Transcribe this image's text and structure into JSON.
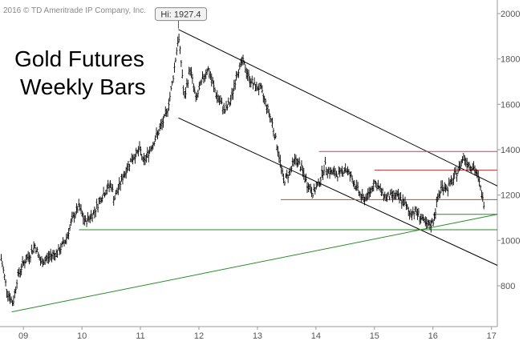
{
  "copyright": "2016 © TD Ameritrade IP Company, Inc.",
  "title_lines": [
    "Gold Futures",
    "Weekly Bars"
  ],
  "chart_data": {
    "type": "ohlc",
    "title": "Gold Futures Weekly Bars",
    "x_ticks": [
      "09",
      "10",
      "11",
      "12",
      "13",
      "14",
      "15",
      "16",
      "17"
    ],
    "x_tick_years": [
      2009,
      2010,
      2011,
      2012,
      2013,
      2014,
      2015,
      2016,
      2017
    ],
    "y_ticks": [
      800,
      1000,
      1200,
      1400,
      1600,
      1800,
      2000
    ],
    "xlim": [
      2008.6,
      2017.1
    ],
    "ylim": [
      620,
      2060
    ],
    "grid": false,
    "annotation": {
      "text": "Hi: 1927.4",
      "x": 2011.65,
      "y": 1927.4
    },
    "price_path": [
      [
        2008.62,
        920
      ],
      [
        2008.72,
        780
      ],
      [
        2008.82,
        720
      ],
      [
        2008.9,
        840
      ],
      [
        2009.0,
        900
      ],
      [
        2009.12,
        940
      ],
      [
        2009.2,
        980
      ],
      [
        2009.3,
        900
      ],
      [
        2009.45,
        930
      ],
      [
        2009.6,
        950
      ],
      [
        2009.72,
        1000
      ],
      [
        2009.85,
        1100
      ],
      [
        2009.95,
        1150
      ],
      [
        2010.05,
        1080
      ],
      [
        2010.2,
        1120
      ],
      [
        2010.35,
        1200
      ],
      [
        2010.5,
        1250
      ],
      [
        2010.55,
        1180
      ],
      [
        2010.7,
        1280
      ],
      [
        2010.85,
        1360
      ],
      [
        2011.0,
        1400
      ],
      [
        2011.05,
        1340
      ],
      [
        2011.2,
        1420
      ],
      [
        2011.35,
        1500
      ],
      [
        2011.45,
        1560
      ],
      [
        2011.55,
        1700
      ],
      [
        2011.65,
        1900
      ],
      [
        2011.7,
        1780
      ],
      [
        2011.75,
        1620
      ],
      [
        2011.85,
        1760
      ],
      [
        2011.95,
        1620
      ],
      [
        2012.05,
        1700
      ],
      [
        2012.15,
        1760
      ],
      [
        2012.3,
        1640
      ],
      [
        2012.45,
        1570
      ],
      [
        2012.55,
        1620
      ],
      [
        2012.65,
        1740
      ],
      [
        2012.75,
        1790
      ],
      [
        2012.85,
        1720
      ],
      [
        2012.95,
        1680
      ],
      [
        2013.05,
        1670
      ],
      [
        2013.15,
        1600
      ],
      [
        2013.25,
        1520
      ],
      [
        2013.35,
        1400
      ],
      [
        2013.45,
        1260
      ],
      [
        2013.55,
        1300
      ],
      [
        2013.65,
        1360
      ],
      [
        2013.75,
        1320
      ],
      [
        2013.85,
        1250
      ],
      [
        2013.95,
        1210
      ],
      [
        2014.05,
        1250
      ],
      [
        2014.15,
        1330
      ],
      [
        2014.25,
        1300
      ],
      [
        2014.4,
        1290
      ],
      [
        2014.5,
        1320
      ],
      [
        2014.6,
        1280
      ],
      [
        2014.7,
        1230
      ],
      [
        2014.8,
        1180
      ],
      [
        2014.9,
        1200
      ],
      [
        2015.0,
        1260
      ],
      [
        2015.1,
        1220
      ],
      [
        2015.2,
        1190
      ],
      [
        2015.35,
        1200
      ],
      [
        2015.5,
        1170
      ],
      [
        2015.6,
        1120
      ],
      [
        2015.7,
        1130
      ],
      [
        2015.8,
        1100
      ],
      [
        2015.9,
        1060
      ],
      [
        2016.0,
        1080
      ],
      [
        2016.08,
        1180
      ],
      [
        2016.15,
        1240
      ],
      [
        2016.25,
        1230
      ],
      [
        2016.35,
        1270
      ],
      [
        2016.45,
        1320
      ],
      [
        2016.52,
        1370
      ],
      [
        2016.6,
        1340
      ],
      [
        2016.7,
        1320
      ],
      [
        2016.78,
        1270
      ],
      [
        2016.85,
        1180
      ],
      [
        2016.88,
        1160
      ]
    ],
    "lines": [
      {
        "name": "channel-upper",
        "color": "#000000",
        "x": [
          2011.65,
          2017.1
        ],
        "y": [
          1930,
          1240
        ]
      },
      {
        "name": "channel-lower",
        "color": "#000000",
        "x": [
          2011.65,
          2017.1
        ],
        "y": [
          1540,
          890
        ]
      },
      {
        "name": "long-support-trendline",
        "color": "#2a8a2a",
        "x": [
          2008.8,
          2017.1
        ],
        "y": [
          685,
          1115
        ]
      },
      {
        "name": "support-horizontal-1050",
        "color": "#2a8a2a",
        "x": [
          2009.95,
          2017.1
        ],
        "y": [
          1047,
          1047
        ]
      },
      {
        "name": "support-horizontal-1115",
        "color": "#2a8a2a",
        "x": [
          2016.0,
          2017.1
        ],
        "y": [
          1115,
          1115
        ]
      },
      {
        "name": "resistance-1390",
        "color": "#d04040",
        "x": [
          2014.05,
          2017.1
        ],
        "y": [
          1392,
          1392
        ]
      },
      {
        "name": "resistance-1310",
        "color": "#d04040",
        "x": [
          2015.0,
          2017.1
        ],
        "y": [
          1310,
          1310
        ]
      },
      {
        "name": "resistance-1180",
        "color": "#d04040",
        "x": [
          2013.4,
          2017.1
        ],
        "y": [
          1180,
          1180
        ]
      }
    ]
  }
}
